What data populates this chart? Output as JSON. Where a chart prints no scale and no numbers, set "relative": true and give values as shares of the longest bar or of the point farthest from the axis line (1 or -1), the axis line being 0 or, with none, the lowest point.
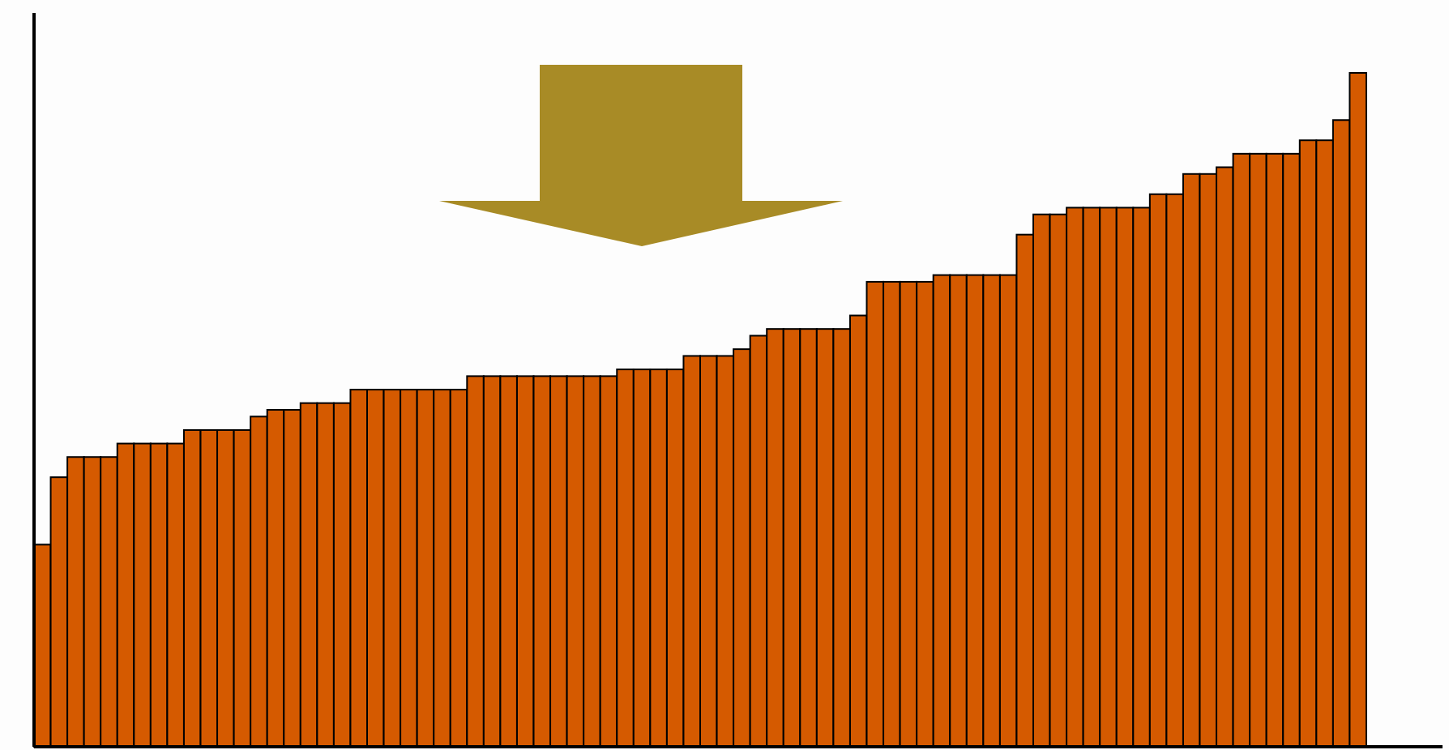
{
  "chart_data": {
    "type": "bar",
    "relative": true,
    "color": "#d55a00",
    "categories": [
      null,
      null,
      null,
      null,
      null,
      null,
      null,
      null,
      null,
      null,
      null,
      null,
      null,
      null,
      null,
      null,
      null,
      null,
      null,
      null,
      null,
      null,
      null,
      null,
      null,
      null,
      null,
      null,
      null,
      null,
      null,
      null,
      null,
      null,
      null,
      null,
      null,
      null,
      null,
      null,
      null,
      null,
      null,
      null,
      null,
      null,
      null,
      null,
      null,
      null,
      null,
      null,
      null,
      null,
      null,
      null,
      null,
      null,
      null,
      null,
      null,
      null,
      null,
      null,
      null,
      null,
      null,
      null,
      null,
      null,
      null,
      null,
      null,
      null,
      null,
      null,
      null,
      null,
      null,
      null
    ],
    "values": [
      0.3,
      0.4,
      0.43,
      0.43,
      0.43,
      0.45,
      0.45,
      0.45,
      0.45,
      0.47,
      0.47,
      0.47,
      0.47,
      0.49,
      0.5,
      0.5,
      0.51,
      0.51,
      0.51,
      0.53,
      0.53,
      0.53,
      0.53,
      0.53,
      0.53,
      0.53,
      0.55,
      0.55,
      0.55,
      0.55,
      0.55,
      0.55,
      0.55,
      0.55,
      0.55,
      0.56,
      0.56,
      0.56,
      0.56,
      0.58,
      0.58,
      0.58,
      0.59,
      0.61,
      0.62,
      0.62,
      0.62,
      0.62,
      0.62,
      0.64,
      0.69,
      0.69,
      0.69,
      0.69,
      0.7,
      0.7,
      0.7,
      0.7,
      0.7,
      0.76,
      0.79,
      0.79,
      0.8,
      0.8,
      0.8,
      0.8,
      0.8,
      0.82,
      0.82,
      0.85,
      0.85,
      0.86,
      0.88,
      0.88,
      0.88,
      0.88,
      0.9,
      0.9,
      0.93,
      1
    ]
  }
}
